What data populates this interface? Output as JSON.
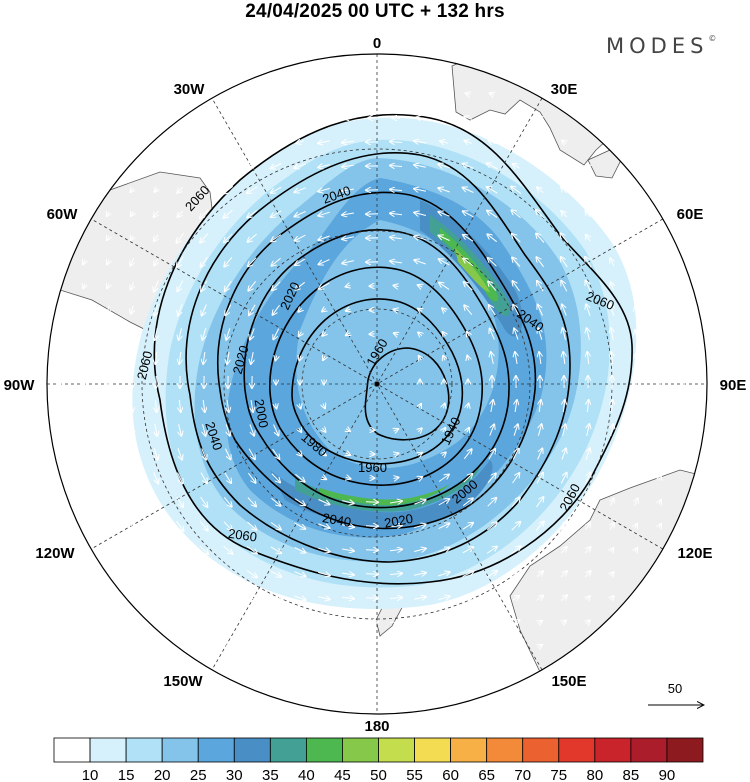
{
  "title": "24/04/2025  00 UTC  + 132 hrs",
  "logo": "MODES",
  "logo_symbol": "©",
  "longitude_labels": {
    "deg0": "0",
    "deg30e": "30E",
    "deg60e": "60E",
    "deg90e": "90E",
    "deg120e": "120E",
    "deg150e": "150E",
    "deg180": "180",
    "deg150w": "150W",
    "deg120w": "120W",
    "deg90w": "90W",
    "deg60w": "60W",
    "deg30w": "30W"
  },
  "contour_labels": [
    "2060",
    "2040",
    "2020",
    "2000",
    "1980",
    "1960",
    "1940"
  ],
  "reference_vector": {
    "value": "50"
  },
  "colorbar": {
    "ticks": [
      "10",
      "15",
      "20",
      "25",
      "30",
      "35",
      "40",
      "45",
      "50",
      "55",
      "60",
      "65",
      "70",
      "75",
      "80",
      "85",
      "90"
    ],
    "colors": [
      "#ffffff",
      "#d6f1fb",
      "#b1e1f6",
      "#84c4ea",
      "#5ba6dc",
      "#4a8ec6",
      "#43a095",
      "#4cb84f",
      "#86c94a",
      "#c3dd4d",
      "#f4dc52",
      "#f6b045",
      "#f28a3a",
      "#ec6130",
      "#e1382b",
      "#c9232c",
      "#ac1d2b",
      "#8c1a1e"
    ]
  },
  "colors": {
    "land": "#eeeeee",
    "coast": "#555555",
    "contour": "#000000",
    "vector": "#ffffff"
  }
}
